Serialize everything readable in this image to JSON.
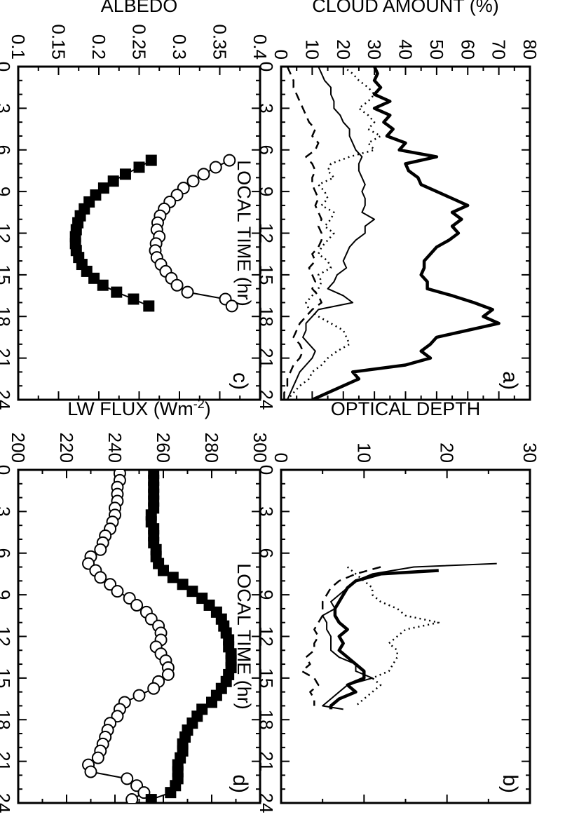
{
  "chart_data": [
    {
      "panel": "a)",
      "type": "line",
      "xlabel": "LOCAL TIME (hr)",
      "ylabel": "CLOUD AMOUNT (%)",
      "xlim": [
        0,
        24
      ],
      "ylim": [
        0,
        80
      ],
      "xticks": [
        "0",
        "3",
        "6",
        "9",
        "12",
        "15",
        "18",
        "21",
        "24"
      ],
      "yticks": [
        "0",
        "10",
        "20",
        "30",
        "40",
        "50",
        "60",
        "70",
        "80"
      ],
      "series": [
        {
          "style": "thick",
          "x": [
            0,
            0.5,
            1,
            1.5,
            2,
            2.5,
            3,
            3.5,
            4,
            4.5,
            5,
            5.5,
            6,
            6.5,
            7,
            7.5,
            8,
            8.5,
            9,
            9.5,
            10,
            10.5,
            11,
            11.5,
            12,
            12.5,
            13,
            13.5,
            14,
            14.5,
            15,
            15.5,
            16,
            16.5,
            17,
            17.5,
            18,
            18.5,
            19,
            19.5,
            20,
            20.5,
            21,
            21.5,
            22,
            22.5,
            23,
            23.5,
            24
          ],
          "y": [
            30,
            31,
            30,
            32,
            30,
            35,
            30,
            35,
            33,
            36,
            34,
            40,
            38,
            50,
            40,
            41,
            44,
            45,
            50,
            55,
            60,
            55,
            58,
            55,
            57,
            54,
            50,
            48,
            46,
            46,
            45,
            47,
            47,
            55,
            62,
            68,
            65,
            70,
            60,
            50,
            48,
            45,
            48,
            40,
            23,
            25,
            20,
            15,
            10
          ]
        },
        {
          "style": "dotted",
          "x": [
            0,
            0.5,
            1,
            1.5,
            2,
            2.5,
            3,
            3.5,
            4,
            4.5,
            5,
            5.5,
            6,
            6.5,
            7,
            7.5,
            8,
            8.5,
            9,
            9.5,
            10,
            10.5,
            11,
            11.5,
            12,
            12.5,
            13,
            13.5,
            14,
            14.5,
            15,
            15.5,
            16,
            16.5,
            17,
            17.5,
            18,
            18.5,
            19,
            19.5,
            20,
            20.5,
            21,
            21.5,
            22,
            22.5,
            23,
            23.5,
            24
          ],
          "y": [
            20,
            23,
            25,
            28,
            30,
            28,
            25,
            28,
            30,
            28,
            32,
            28,
            30,
            22,
            16,
            15,
            17,
            12,
            14,
            15,
            13,
            17,
            16,
            14,
            17,
            15,
            13,
            12,
            15,
            16,
            12,
            13,
            12,
            10,
            8,
            9,
            12,
            16,
            20,
            21,
            22,
            18,
            15,
            13,
            10,
            9,
            6,
            4,
            2
          ]
        },
        {
          "style": "thin",
          "x": [
            0,
            0.5,
            1,
            1.5,
            2,
            2.5,
            3,
            3.5,
            4,
            4.5,
            5,
            5.5,
            6,
            6.5,
            7,
            7.5,
            8,
            8.5,
            9,
            9.5,
            10,
            10.5,
            11,
            11.5,
            12,
            12.5,
            13,
            13.5,
            14,
            14.5,
            15,
            15.5,
            16,
            16.5,
            17,
            17.5,
            18,
            18.5,
            19,
            19.5,
            20,
            20.5,
            21,
            21.5,
            22,
            22.5,
            23,
            23.5,
            24
          ],
          "y": [
            12,
            13,
            14,
            16,
            16,
            17,
            17,
            19,
            20,
            22,
            22,
            23,
            24,
            26,
            25,
            25,
            26,
            27,
            26,
            27,
            27,
            26,
            30,
            27,
            27,
            24,
            22,
            21,
            20,
            21,
            18,
            17,
            15,
            20,
            23,
            12,
            10,
            8,
            8,
            7,
            9,
            11,
            10,
            8,
            6,
            5,
            4,
            3,
            2
          ]
        },
        {
          "style": "dashed",
          "x": [
            0,
            0.5,
            1,
            1.5,
            2,
            2.5,
            3,
            3.5,
            4,
            4.5,
            5,
            5.5,
            6,
            6.5,
            7,
            7.5,
            8,
            8.5,
            9,
            9.5,
            10,
            10.5,
            11,
            11.5,
            12,
            12.5,
            13,
            13.5,
            14,
            14.5,
            15,
            15.5,
            16,
            16.5,
            17,
            17.5,
            18,
            18.5,
            19,
            19.5,
            20,
            20.5,
            21,
            21.5,
            22,
            22.5,
            23,
            23.5,
            24
          ],
          "y": [
            2,
            3,
            4,
            4,
            5,
            6,
            7,
            8,
            9,
            11,
            10,
            12,
            11,
            8,
            10,
            11,
            10,
            10,
            11,
            12,
            11,
            12,
            13,
            12,
            13,
            13,
            12,
            10,
            11,
            9,
            10,
            11,
            10,
            12,
            13,
            10,
            8,
            6,
            5,
            4,
            6,
            7,
            6,
            4,
            3,
            2,
            2,
            1,
            1
          ]
        }
      ]
    },
    {
      "panel": "b)",
      "type": "line",
      "xlabel": "LOCAL TIME (hr)",
      "ylabel": "OPTICAL DEPTH",
      "xlim": [
        0,
        24
      ],
      "ylim": [
        0,
        30
      ],
      "xticks": [
        "0",
        "3",
        "6",
        "9",
        "12",
        "15",
        "18",
        "21",
        "24"
      ],
      "yticks": [
        "0",
        "10",
        "20",
        "30"
      ],
      "series": [
        {
          "style": "thick",
          "x": [
            7.25,
            7.5,
            8,
            8.5,
            9,
            9.5,
            10,
            10.5,
            11,
            11.5,
            12,
            12.5,
            13,
            13.5,
            14,
            14.5,
            15,
            15.5,
            16,
            16.5,
            17,
            17.25
          ],
          "y": [
            19,
            12,
            9,
            8,
            7.5,
            7,
            6.5,
            6.5,
            7,
            8,
            7,
            7.5,
            7,
            8,
            9,
            10,
            10,
            8,
            9,
            7,
            6,
            6
          ]
        },
        {
          "style": "thin",
          "x": [
            6.75,
            7,
            7.5,
            8,
            8.5,
            9,
            9.5,
            10,
            10.5,
            11,
            11.5,
            12,
            12.5,
            13,
            13.5,
            14,
            14.5,
            15,
            15.5,
            16,
            16.5,
            17,
            17.25
          ],
          "y": [
            26,
            16,
            11,
            9,
            8,
            7,
            6,
            6.5,
            5,
            5.5,
            5.5,
            6,
            6,
            6,
            7,
            9,
            9,
            11,
            8,
            7,
            6,
            5,
            7.5
          ]
        },
        {
          "style": "dotted",
          "x": [
            7,
            7.5,
            8,
            8.5,
            9,
            9.5,
            10,
            10.5,
            11,
            11.5,
            12,
            12.5,
            13,
            13.5,
            14,
            14.5,
            15,
            15.5,
            16,
            16.5,
            17
          ],
          "y": [
            8,
            9,
            10,
            11,
            11,
            12,
            14,
            15,
            19,
            15,
            14,
            13,
            14,
            14,
            13.5,
            13,
            11,
            12,
            11,
            10,
            9
          ]
        },
        {
          "style": "dashed",
          "x": [
            7,
            7.5,
            8,
            8.5,
            9,
            9.5,
            10,
            10.5,
            11,
            11.5,
            12,
            12.5,
            13,
            13.5,
            14,
            14.5,
            15,
            15.5,
            16,
            16.5,
            17
          ],
          "y": [
            12,
            9,
            7,
            6,
            5.5,
            5,
            5,
            5,
            4.5,
            4,
            4.5,
            4,
            4,
            3,
            3.5,
            2.5,
            4,
            4.5,
            3.5,
            4,
            4
          ]
        }
      ]
    },
    {
      "panel": "c)",
      "type": "line",
      "xlabel": "LOCAL TIME (hr)",
      "ylabel": "ALBEDO",
      "xlim": [
        0,
        24
      ],
      "ylim": [
        0.1,
        0.4
      ],
      "xticks": [
        "0",
        "3",
        "6",
        "9",
        "12",
        "15",
        "18",
        "21",
        "24"
      ],
      "yticks": [
        "0.1",
        "0.15",
        "0.2",
        "0.25",
        "0.3",
        "0.35",
        "0.4"
      ],
      "series": [
        {
          "marker": "open-circle",
          "x": [
            6.75,
            7.25,
            7.75,
            8.25,
            8.75,
            9.25,
            9.75,
            10.25,
            10.75,
            11.25,
            11.75,
            12.25,
            12.75,
            13.25,
            13.75,
            14.25,
            14.75,
            15.25,
            15.75,
            16.25,
            16.75,
            17.25
          ],
          "y": [
            0.362,
            0.345,
            0.33,
            0.317,
            0.305,
            0.297,
            0.288,
            0.281,
            0.276,
            0.273,
            0.272,
            0.275,
            0.271,
            0.27,
            0.272,
            0.277,
            0.283,
            0.29,
            0.297,
            0.31,
            0.357,
            0.365
          ]
        },
        {
          "marker": "filled-square",
          "x": [
            6.75,
            7.25,
            7.75,
            8.25,
            8.75,
            9.25,
            9.75,
            10.25,
            10.75,
            11.25,
            11.75,
            12.25,
            12.75,
            13.25,
            13.75,
            14.25,
            14.75,
            15.25,
            15.75,
            16.25,
            16.75,
            17.25
          ],
          "y": [
            0.265,
            0.25,
            0.233,
            0.218,
            0.206,
            0.196,
            0.188,
            0.182,
            0.177,
            0.174,
            0.172,
            0.171,
            0.171,
            0.172,
            0.175,
            0.179,
            0.185,
            0.194,
            0.205,
            0.222,
            0.243,
            0.262
          ]
        }
      ]
    },
    {
      "panel": "d)",
      "type": "line",
      "xlabel": "LOCAL TIME (hr)",
      "ylabel": "LW FLUX (Wm",
      "ylabel_superscript": "-2",
      "ylabel_suffix": ")",
      "xlim": [
        0,
        24
      ],
      "ylim": [
        200,
        300
      ],
      "xticks": [
        "0",
        "3",
        "6",
        "9",
        "12",
        "15",
        "18",
        "21",
        "24"
      ],
      "yticks": [
        "200",
        "220",
        "240",
        "260",
        "280",
        "300"
      ],
      "series": [
        {
          "marker": "open-circle",
          "x": [
            0.25,
            0.75,
            1.25,
            1.75,
            2.25,
            2.75,
            3.25,
            3.75,
            4.25,
            4.75,
            5.25,
            5.75,
            6.25,
            6.75,
            7.25,
            7.75,
            8.25,
            8.75,
            9.25,
            9.75,
            10.25,
            10.75,
            11.25,
            11.75,
            12.25,
            12.75,
            13.25,
            13.75,
            14.25,
            14.75,
            15.25,
            15.75,
            16.25,
            16.75,
            17.25,
            17.75,
            18.25,
            18.75,
            19.25,
            19.75,
            20.25,
            20.75,
            21.25,
            21.75,
            22.25,
            22.75,
            23.25,
            23.75
          ],
          "y": [
            242,
            242,
            241,
            241,
            241,
            240,
            240,
            239,
            238,
            236,
            235,
            234,
            230,
            229,
            232,
            234,
            238,
            241,
            246,
            249,
            253,
            255,
            258,
            259,
            259,
            257,
            259,
            261,
            262,
            262,
            258,
            256,
            250,
            244,
            242,
            241,
            238,
            237,
            236,
            235,
            234,
            233,
            229,
            230,
            245,
            249,
            252,
            247
          ]
        },
        {
          "marker": "filled-square",
          "x": [
            0.25,
            0.75,
            1.25,
            1.75,
            2.25,
            2.75,
            3.25,
            3.75,
            4.25,
            4.75,
            5.25,
            5.75,
            6.25,
            6.75,
            7.25,
            7.75,
            8.25,
            8.75,
            9.25,
            9.75,
            10.25,
            10.75,
            11.25,
            11.75,
            12.25,
            12.75,
            13.25,
            13.75,
            14.25,
            14.75,
            15.25,
            15.75,
            16.25,
            16.75,
            17.25,
            17.75,
            18.25,
            18.75,
            19.25,
            19.75,
            20.25,
            20.75,
            21.25,
            21.75,
            22.25,
            22.75,
            23.25,
            23.75
          ],
          "y": [
            256,
            256,
            256,
            256,
            256,
            256,
            255,
            255,
            256,
            256,
            256,
            257,
            257,
            258,
            260,
            264,
            268,
            272,
            276,
            279,
            282,
            284,
            285,
            286,
            287,
            287,
            288,
            288,
            288,
            287,
            286,
            284,
            282,
            280,
            276,
            274,
            272,
            270,
            269,
            268,
            268,
            267,
            266,
            266,
            266,
            265,
            263,
            255
          ]
        }
      ]
    }
  ]
}
